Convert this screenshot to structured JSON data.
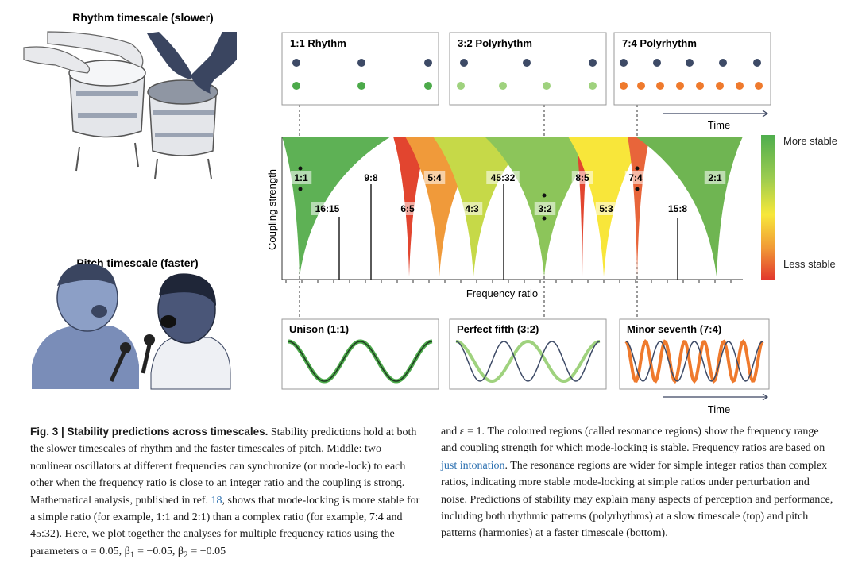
{
  "labels": {
    "rhythm": "Rhythm timescale (slower)",
    "pitch": "Pitch timescale (faster)"
  },
  "rhythm_panels": [
    {
      "title": "1:1 Rhythm"
    },
    {
      "title": "3:2 Polyrhythm"
    },
    {
      "title": "7:4 Polyrhythm"
    }
  ],
  "top_time": "Time",
  "chart": {
    "y_label": "Coupling strength",
    "x_label": "Frequency ratio",
    "ratios": [
      "1:1",
      "16:15",
      "9:8",
      "6:5",
      "5:4",
      "4:3",
      "45:32",
      "3:2",
      "8:5",
      "5:3",
      "7:4",
      "15:8",
      "2:1"
    ],
    "legend": {
      "top": "More stable",
      "bottom": "Less stable"
    }
  },
  "pitch_panels": [
    {
      "title": "Unison (1:1)"
    },
    {
      "title": "Perfect fifth (3:2)"
    },
    {
      "title": "Minor seventh (7:4)"
    }
  ],
  "bottom_time": "Time",
  "caption": {
    "left": [
      "Fig. 3 | Stability predictions across timescales.",
      " Stability predictions hold at both the slower timescales of rhythm and the faster timescales of pitch. Middle: two nonlinear oscillators at different frequencies can synchronize (or mode-lock) to each other when the frequency ratio is close to an integer ratio and the coupling is strong. Mathematical analysis, published in ref. ",
      "18",
      ", shows that mode-locking is more stable for a simple ratio (for example, 1:1 and 2:1) than a complex ratio (for example, 7:4 and 45:32). Here, we plot together the analyses for multiple frequency ratios using the parameters α = 0.05, β",
      "1",
      " = −0.05, β",
      "2",
      " = −0.05"
    ],
    "right": [
      "and ε = 1. The coloured regions (called resonance regions) show the frequency range and coupling strength for which mode-locking is stable. Frequency ratios are based on ",
      "just intonation",
      ". The resonance regions are wider for simple integer ratios than complex ratios, indicating more stable mode-locking at simple ratios under perturbation and noise. Predictions of stability may explain many aspects of perception and performance, including both rhythmic patterns (polyrhythms) at a slow timescale (top) and pitch patterns (harmonies) at a faster timescale (bottom)."
    ]
  }
}
